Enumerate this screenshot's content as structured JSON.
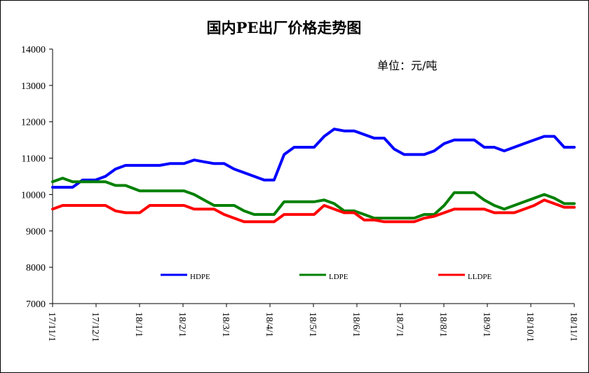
{
  "chart_data": {
    "type": "line",
    "title": "国内PE出厂价格走势图",
    "unit_label": "单位：元/吨",
    "ylim": [
      7000,
      14000
    ],
    "y_ticks": [
      7000,
      8000,
      9000,
      10000,
      11000,
      12000,
      13000,
      14000
    ],
    "x_tick_labels": [
      "17/11/1",
      "17/12/1",
      "18/1/1",
      "18/2/1",
      "18/3/1",
      "18/4/1",
      "18/5/1",
      "18/6/1",
      "18/7/1",
      "18/8/1",
      "18/9/1",
      "18/10/1",
      "18/11/1"
    ],
    "x_range": [
      "2017-11-01",
      "2018-11-01"
    ],
    "grid": false,
    "legend_position": "bottom",
    "series": [
      {
        "name": "HDPE",
        "color": "#0000FF",
        "points": [
          [
            "2017-11-01",
            10200
          ],
          [
            "2017-11-15",
            10200
          ],
          [
            "2017-11-22",
            10400
          ],
          [
            "2017-12-01",
            10400
          ],
          [
            "2017-12-08",
            10500
          ],
          [
            "2017-12-15",
            10700
          ],
          [
            "2017-12-22",
            10800
          ],
          [
            "2018-01-01",
            10800
          ],
          [
            "2018-01-08",
            10800
          ],
          [
            "2018-01-15",
            10800
          ],
          [
            "2018-01-22",
            10850
          ],
          [
            "2018-02-01",
            10850
          ],
          [
            "2018-02-08",
            10950
          ],
          [
            "2018-02-15",
            10900
          ],
          [
            "2018-02-22",
            10850
          ],
          [
            "2018-03-01",
            10850
          ],
          [
            "2018-03-08",
            10700
          ],
          [
            "2018-03-15",
            10600
          ],
          [
            "2018-03-22",
            10500
          ],
          [
            "2018-03-29",
            10400
          ],
          [
            "2018-04-05",
            10400
          ],
          [
            "2018-04-12",
            11100
          ],
          [
            "2018-04-19",
            11300
          ],
          [
            "2018-04-26",
            11300
          ],
          [
            "2018-05-03",
            11300
          ],
          [
            "2018-05-10",
            11600
          ],
          [
            "2018-05-17",
            11800
          ],
          [
            "2018-05-24",
            11750
          ],
          [
            "2018-05-31",
            11750
          ],
          [
            "2018-06-07",
            11650
          ],
          [
            "2018-06-14",
            11550
          ],
          [
            "2018-06-21",
            11550
          ],
          [
            "2018-06-28",
            11250
          ],
          [
            "2018-07-05",
            11100
          ],
          [
            "2018-07-12",
            11100
          ],
          [
            "2018-07-19",
            11100
          ],
          [
            "2018-07-26",
            11200
          ],
          [
            "2018-08-02",
            11400
          ],
          [
            "2018-08-09",
            11500
          ],
          [
            "2018-08-16",
            11500
          ],
          [
            "2018-08-23",
            11500
          ],
          [
            "2018-08-30",
            11300
          ],
          [
            "2018-09-06",
            11300
          ],
          [
            "2018-09-13",
            11200
          ],
          [
            "2018-09-20",
            11300
          ],
          [
            "2018-09-27",
            11400
          ],
          [
            "2018-10-04",
            11500
          ],
          [
            "2018-10-11",
            11600
          ],
          [
            "2018-10-18",
            11600
          ],
          [
            "2018-10-25",
            11300
          ],
          [
            "2018-11-01",
            11300
          ]
        ]
      },
      {
        "name": "LDPE",
        "color": "#008000",
        "points": [
          [
            "2017-11-01",
            10350
          ],
          [
            "2017-11-08",
            10450
          ],
          [
            "2017-11-15",
            10350
          ],
          [
            "2017-11-22",
            10350
          ],
          [
            "2017-12-01",
            10350
          ],
          [
            "2017-12-08",
            10350
          ],
          [
            "2017-12-15",
            10250
          ],
          [
            "2017-12-22",
            10250
          ],
          [
            "2018-01-01",
            10100
          ],
          [
            "2018-01-08",
            10100
          ],
          [
            "2018-01-15",
            10100
          ],
          [
            "2018-01-22",
            10100
          ],
          [
            "2018-02-01",
            10100
          ],
          [
            "2018-02-08",
            10000
          ],
          [
            "2018-02-15",
            9850
          ],
          [
            "2018-02-22",
            9700
          ],
          [
            "2018-03-01",
            9700
          ],
          [
            "2018-03-08",
            9700
          ],
          [
            "2018-03-15",
            9550
          ],
          [
            "2018-03-22",
            9450
          ],
          [
            "2018-03-29",
            9450
          ],
          [
            "2018-04-05",
            9450
          ],
          [
            "2018-04-12",
            9800
          ],
          [
            "2018-04-19",
            9800
          ],
          [
            "2018-04-26",
            9800
          ],
          [
            "2018-05-03",
            9800
          ],
          [
            "2018-05-10",
            9850
          ],
          [
            "2018-05-17",
            9750
          ],
          [
            "2018-05-24",
            9550
          ],
          [
            "2018-05-31",
            9550
          ],
          [
            "2018-06-07",
            9450
          ],
          [
            "2018-06-14",
            9350
          ],
          [
            "2018-06-21",
            9350
          ],
          [
            "2018-06-28",
            9350
          ],
          [
            "2018-07-05",
            9350
          ],
          [
            "2018-07-12",
            9350
          ],
          [
            "2018-07-19",
            9450
          ],
          [
            "2018-07-26",
            9450
          ],
          [
            "2018-08-02",
            9700
          ],
          [
            "2018-08-09",
            10050
          ],
          [
            "2018-08-16",
            10050
          ],
          [
            "2018-08-23",
            10050
          ],
          [
            "2018-08-30",
            9850
          ],
          [
            "2018-09-06",
            9700
          ],
          [
            "2018-09-13",
            9600
          ],
          [
            "2018-09-20",
            9700
          ],
          [
            "2018-09-27",
            9800
          ],
          [
            "2018-10-04",
            9900
          ],
          [
            "2018-10-11",
            10000
          ],
          [
            "2018-10-18",
            9900
          ],
          [
            "2018-10-25",
            9750
          ],
          [
            "2018-11-01",
            9750
          ]
        ]
      },
      {
        "name": "LLDPE",
        "color": "#FF0000",
        "points": [
          [
            "2017-11-01",
            9600
          ],
          [
            "2017-11-08",
            9700
          ],
          [
            "2017-11-15",
            9700
          ],
          [
            "2017-11-22",
            9700
          ],
          [
            "2017-12-01",
            9700
          ],
          [
            "2017-12-08",
            9700
          ],
          [
            "2017-12-15",
            9550
          ],
          [
            "2017-12-22",
            9500
          ],
          [
            "2018-01-01",
            9500
          ],
          [
            "2018-01-08",
            9700
          ],
          [
            "2018-01-15",
            9700
          ],
          [
            "2018-01-22",
            9700
          ],
          [
            "2018-02-01",
            9700
          ],
          [
            "2018-02-08",
            9600
          ],
          [
            "2018-02-15",
            9600
          ],
          [
            "2018-02-22",
            9600
          ],
          [
            "2018-03-01",
            9450
          ],
          [
            "2018-03-08",
            9350
          ],
          [
            "2018-03-15",
            9250
          ],
          [
            "2018-03-22",
            9250
          ],
          [
            "2018-03-29",
            9250
          ],
          [
            "2018-04-05",
            9250
          ],
          [
            "2018-04-12",
            9450
          ],
          [
            "2018-04-19",
            9450
          ],
          [
            "2018-04-26",
            9450
          ],
          [
            "2018-05-03",
            9450
          ],
          [
            "2018-05-10",
            9700
          ],
          [
            "2018-05-17",
            9600
          ],
          [
            "2018-05-24",
            9500
          ],
          [
            "2018-05-31",
            9500
          ],
          [
            "2018-06-07",
            9300
          ],
          [
            "2018-06-14",
            9300
          ],
          [
            "2018-06-21",
            9250
          ],
          [
            "2018-06-28",
            9250
          ],
          [
            "2018-07-05",
            9250
          ],
          [
            "2018-07-12",
            9250
          ],
          [
            "2018-07-19",
            9350
          ],
          [
            "2018-07-26",
            9400
          ],
          [
            "2018-08-02",
            9500
          ],
          [
            "2018-08-09",
            9600
          ],
          [
            "2018-08-16",
            9600
          ],
          [
            "2018-08-23",
            9600
          ],
          [
            "2018-08-30",
            9600
          ],
          [
            "2018-09-06",
            9500
          ],
          [
            "2018-09-13",
            9500
          ],
          [
            "2018-09-20",
            9500
          ],
          [
            "2018-09-27",
            9600
          ],
          [
            "2018-10-04",
            9700
          ],
          [
            "2018-10-11",
            9850
          ],
          [
            "2018-10-18",
            9750
          ],
          [
            "2018-10-25",
            9650
          ],
          [
            "2018-11-01",
            9650
          ]
        ]
      }
    ]
  }
}
